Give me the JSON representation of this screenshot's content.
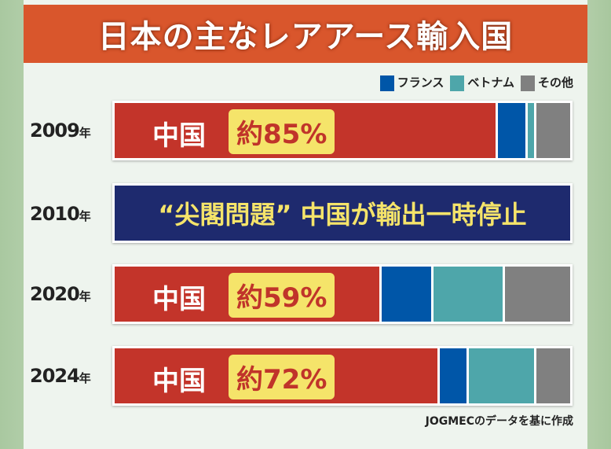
{
  "chart_data": {
    "type": "bar",
    "stacked": true,
    "orientation": "horizontal",
    "title": "日本の主なレアアース輸入国",
    "series_names": [
      "中国",
      "フランス",
      "ベトナム",
      "その他"
    ],
    "colors": {
      "中国": "#c3342a",
      "フランス": "#0056a8",
      "ベトナム": "#4ea6aa",
      "その他": "#808080"
    },
    "legend": [
      {
        "name": "フランス",
        "color": "#0056a8"
      },
      {
        "name": "ベトナム",
        "color": "#4ea6aa"
      },
      {
        "name": "その他",
        "color": "#808080"
      }
    ],
    "legend_position": "top-right",
    "rows": [
      {
        "year": "2009",
        "unit": "年",
        "china_label": "中国",
        "pct_label": "約85%",
        "values": [
          85,
          6,
          1.5,
          7.5
        ]
      },
      {
        "year": "2020",
        "unit": "年",
        "china_label": "中国",
        "pct_label": "約59%",
        "values": [
          59,
          11,
          15.5,
          14.5
        ]
      },
      {
        "year": "2024",
        "unit": "年",
        "china_label": "中国",
        "pct_label": "約72%",
        "values": [
          72,
          6,
          14.5,
          7.5
        ]
      }
    ],
    "event": {
      "year": "2010",
      "unit": "年",
      "text": "“尖閣問題” 中国が輸出一時停止"
    },
    "source": "JOGMECのデータを基に作成"
  }
}
